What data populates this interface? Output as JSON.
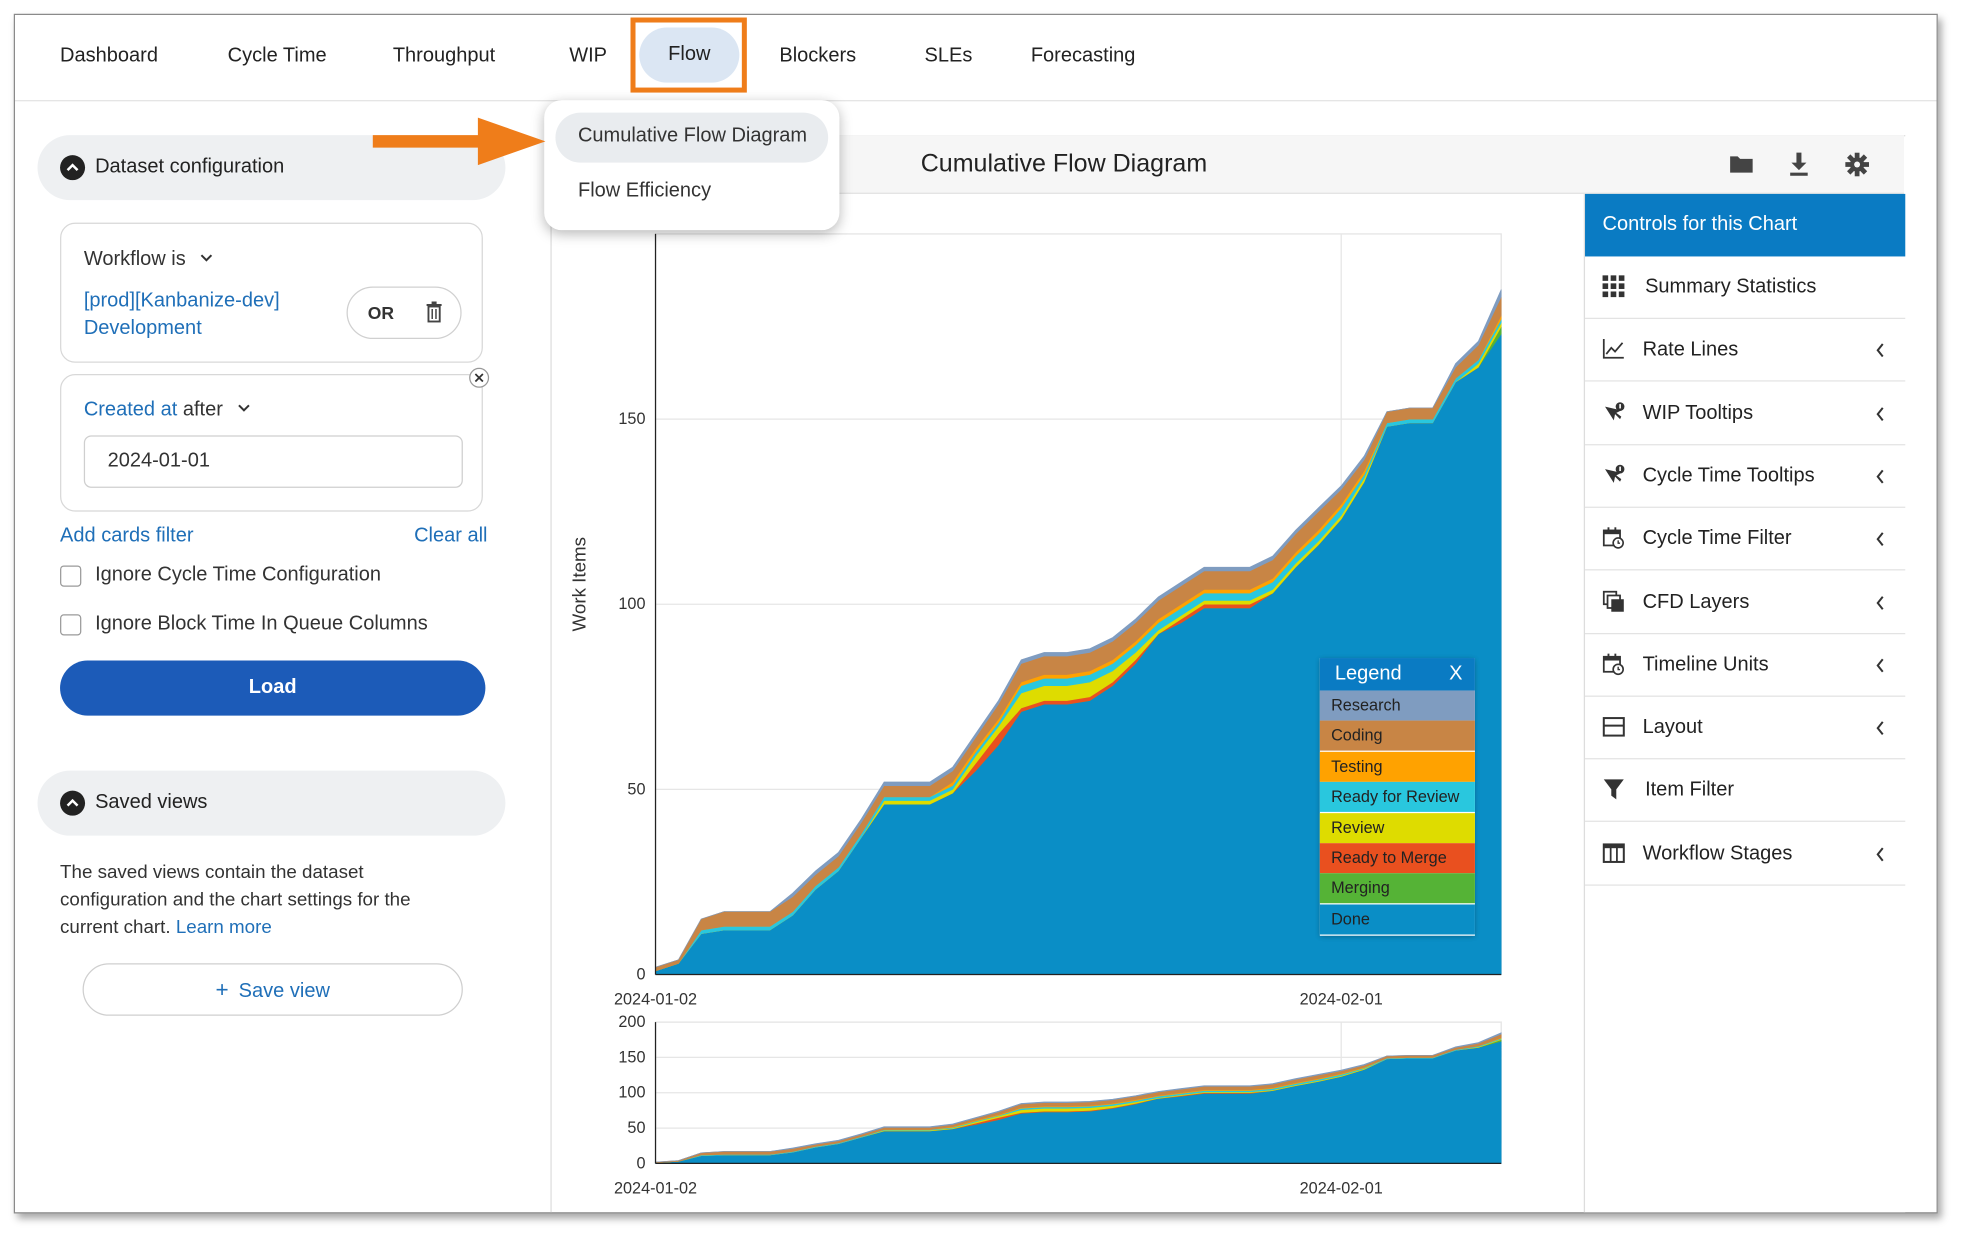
{
  "nav": {
    "tabs": [
      "Dashboard",
      "Cycle Time",
      "Throughput",
      "WIP",
      "Flow",
      "Blockers",
      "SLEs",
      "Forecasting"
    ],
    "active": "Flow"
  },
  "flow_menu": {
    "items": [
      "Cumulative Flow Diagram",
      "Flow Efficiency"
    ],
    "selected": "Cumulative Flow Diagram"
  },
  "dataset": {
    "title": "Dataset configuration",
    "workflow_label": "Workflow is",
    "workflow_value": "[prod][Kanbanize-dev] Development",
    "workflow_line1": "[prod][Kanbanize-dev]",
    "workflow_line2": "Development",
    "or_label": "OR",
    "created_field": "Created at",
    "created_op": "after",
    "created_value": "2024-01-01",
    "add_filter": "Add cards filter",
    "clear_all": "Clear all",
    "ignore_cycle": "Ignore Cycle Time Configuration",
    "ignore_block": "Ignore Block Time In Queue Columns",
    "load": "Load"
  },
  "saved_views": {
    "title": "Saved views",
    "desc_line1": "The saved views contain the dataset",
    "desc_line2": "configuration and the chart settings for the",
    "desc_line3": "current chart.",
    "learn_more": "Learn more",
    "save_button": "Save view"
  },
  "chart_header": {
    "title": "Cumulative Flow Diagram"
  },
  "controls": {
    "title": "Controls for this Chart",
    "items": [
      {
        "label": "Summary Statistics",
        "icon": "grid-icon",
        "expand": false
      },
      {
        "label": "Rate Lines",
        "icon": "line-chart-icon",
        "expand": true
      },
      {
        "label": "WIP Tooltips",
        "icon": "pointer-info-icon",
        "expand": true
      },
      {
        "label": "Cycle Time Tooltips",
        "icon": "pointer-info-icon",
        "expand": true
      },
      {
        "label": "Cycle Time Filter",
        "icon": "calendar-clock-icon",
        "expand": true
      },
      {
        "label": "CFD Layers",
        "icon": "layers-icon",
        "expand": true
      },
      {
        "label": "Timeline Units",
        "icon": "calendar-clock-icon",
        "expand": true
      },
      {
        "label": "Layout",
        "icon": "layout-icon",
        "expand": true
      },
      {
        "label": "Item Filter",
        "icon": "funnel-icon",
        "expand": false
      },
      {
        "label": "Workflow Stages",
        "icon": "columns-icon",
        "expand": true
      }
    ]
  },
  "legend": {
    "title": "Legend",
    "close": "X"
  },
  "chart_data": {
    "type": "area",
    "stacked": true,
    "ylabel": "Work Items",
    "ylim": [
      0,
      200
    ],
    "yticks": [
      0,
      50,
      100,
      150
    ],
    "xticks": [
      "2024-01-02",
      "2024-02-01"
    ],
    "xrange": [
      "2024-01-02",
      "2024-02-08"
    ],
    "x": [
      "2024-01-02",
      "2024-01-03",
      "2024-01-04",
      "2024-01-05",
      "2024-01-06",
      "2024-01-07",
      "2024-01-08",
      "2024-01-09",
      "2024-01-10",
      "2024-01-11",
      "2024-01-12",
      "2024-01-13",
      "2024-01-14",
      "2024-01-15",
      "2024-01-16",
      "2024-01-17",
      "2024-01-18",
      "2024-01-19",
      "2024-01-20",
      "2024-01-21",
      "2024-01-22",
      "2024-01-23",
      "2024-01-24",
      "2024-01-25",
      "2024-01-26",
      "2024-01-27",
      "2024-01-28",
      "2024-01-29",
      "2024-01-30",
      "2024-01-31",
      "2024-02-01",
      "2024-02-02",
      "2024-02-03",
      "2024-02-04",
      "2024-02-05",
      "2024-02-06",
      "2024-02-07",
      "2024-02-08"
    ],
    "series": [
      {
        "name": "Done",
        "color": "#0a8ec6",
        "values": [
          1,
          3,
          11,
          12,
          12,
          12,
          16,
          23,
          28,
          37,
          46,
          46,
          46,
          49,
          55,
          62,
          71,
          73,
          73,
          74,
          78,
          84,
          92,
          95,
          99,
          99,
          99,
          103,
          110,
          116,
          123,
          133,
          148,
          149,
          149,
          160,
          164,
          173
        ]
      },
      {
        "name": "Merging",
        "color": "#55b336",
        "values": [
          0,
          0,
          0,
          0,
          0,
          0,
          0,
          0,
          0,
          0,
          0,
          0,
          0,
          0,
          0,
          0,
          0,
          0,
          0,
          0,
          0,
          0,
          0,
          0,
          0,
          0,
          0,
          0,
          0,
          0,
          0,
          0,
          0,
          0,
          0,
          0,
          0,
          2
        ]
      },
      {
        "name": "Ready to Merge",
        "color": "#e9501f",
        "values": [
          0,
          0,
          0,
          0,
          0,
          0,
          0,
          0,
          0,
          0,
          0,
          0,
          0,
          0,
          2,
          3,
          1,
          1,
          1,
          1,
          1,
          1,
          0,
          1,
          1,
          1,
          1,
          0,
          0,
          0,
          0,
          0,
          0,
          0,
          0,
          0,
          0,
          0
        ]
      },
      {
        "name": "Review",
        "color": "#dedc00",
        "values": [
          0,
          0,
          0,
          0,
          0,
          0,
          0,
          0,
          0,
          0,
          1,
          1,
          1,
          1,
          2,
          2,
          4,
          4,
          4,
          4,
          3,
          2,
          1,
          1,
          1,
          1,
          1,
          1,
          1,
          1,
          1,
          1,
          0,
          0,
          0,
          0,
          1,
          1
        ]
      },
      {
        "name": "Ready for Review",
        "color": "#29c7de",
        "values": [
          0,
          0,
          1,
          1,
          1,
          1,
          1,
          1,
          1,
          1,
          1,
          1,
          1,
          1,
          1,
          1,
          2,
          2,
          2,
          2,
          2,
          2,
          2,
          2,
          2,
          2,
          2,
          2,
          2,
          2,
          2,
          1,
          1,
          1,
          1,
          1,
          1,
          1
        ]
      },
      {
        "name": "Testing",
        "color": "#ffa200",
        "values": [
          0,
          0,
          0,
          0,
          0,
          0,
          0,
          0,
          0,
          0,
          0,
          0,
          0,
          1,
          1,
          1,
          1,
          1,
          1,
          1,
          1,
          1,
          1,
          1,
          1,
          1,
          1,
          1,
          1,
          1,
          1,
          1,
          0,
          0,
          0,
          0,
          0,
          1
        ]
      },
      {
        "name": "Coding",
        "color": "#c88545",
        "values": [
          1,
          1,
          3,
          4,
          4,
          4,
          4,
          3,
          3,
          3,
          3,
          3,
          3,
          3,
          3,
          4,
          5,
          5,
          5,
          5,
          5,
          5,
          5,
          5,
          5,
          5,
          5,
          5,
          5,
          5,
          4,
          3,
          3,
          3,
          3,
          3,
          4,
          5
        ]
      },
      {
        "name": "Research",
        "color": "#7f9cc0",
        "values": [
          0,
          0,
          0,
          0,
          0,
          0,
          1,
          1,
          1,
          1,
          1,
          1,
          1,
          1,
          1,
          1,
          1,
          1,
          1,
          1,
          1,
          1,
          1,
          1,
          1,
          1,
          1,
          1,
          1,
          1,
          1,
          1,
          0,
          0,
          0,
          1,
          1,
          2
        ]
      }
    ],
    "navigator": {
      "ylim": [
        0,
        200
      ],
      "yticks": [
        0,
        50,
        100,
        150,
        200
      ],
      "xticks": [
        "2024-01-02",
        "2024-02-01"
      ]
    }
  }
}
